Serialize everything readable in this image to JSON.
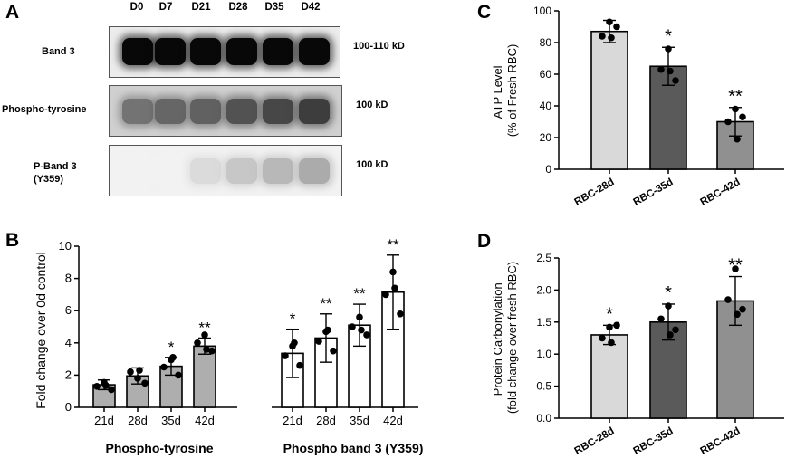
{
  "panels": {
    "a": "A",
    "b": "B",
    "c": "C",
    "d": "D"
  },
  "blot": {
    "lanes": [
      "D0",
      "D7",
      "D21",
      "D28",
      "D35",
      "D42"
    ],
    "rows": [
      {
        "label_lines": [
          "Band 3"
        ],
        "mw": "100-110 kD",
        "intensity": [
          0.97,
          0.97,
          0.97,
          0.97,
          0.97,
          0.97
        ]
      },
      {
        "label_lines": [
          "Phospho-tyrosine"
        ],
        "mw": "100 kD",
        "intensity": [
          0.55,
          0.6,
          0.62,
          0.68,
          0.72,
          0.76
        ]
      },
      {
        "label_lines": [
          "P-Band 3",
          "(Y359)"
        ],
        "mw": "100 kD",
        "intensity": [
          0.05,
          0.05,
          0.14,
          0.22,
          0.28,
          0.33
        ]
      }
    ]
  },
  "chart_data": [
    {
      "panel": "B",
      "type": "bar",
      "ylabel": "Fold change over 0d control",
      "ylim": [
        0,
        10
      ],
      "yticks": [
        0,
        2,
        4,
        6,
        8,
        10
      ],
      "groups": [
        {
          "name": "Phospho-tyrosine",
          "categories": [
            "21d",
            "28d",
            "35d",
            "42d"
          ],
          "values": [
            1.4,
            1.95,
            2.55,
            3.8
          ],
          "errors": [
            0.3,
            0.5,
            0.55,
            0.5
          ],
          "significance": [
            "",
            "",
            "*",
            "**"
          ],
          "fills": [
            "#aeaeae",
            "#aeaeae",
            "#aeaeae",
            "#aeaeae"
          ],
          "points": [
            [
              1.55,
              1.3,
              1.1,
              1.35
            ],
            [
              1.8,
              2.2,
              1.5,
              2.3
            ],
            [
              2.95,
              2.5,
              2.0,
              3.1
            ],
            [
              4.5,
              4.0,
              3.5,
              3.6
            ]
          ]
        },
        {
          "name": "Phospho band 3 (Y359)",
          "categories": [
            "21d",
            "28d",
            "35d",
            "42d"
          ],
          "values": [
            3.35,
            4.3,
            5.1,
            7.15
          ],
          "errors": [
            1.5,
            1.5,
            1.3,
            2.3
          ],
          "significance": [
            "*",
            "**",
            "**",
            "**"
          ],
          "fills": [
            "#ffffff",
            "#ffffff",
            "#ffffff",
            "#ffffff"
          ],
          "points": [
            [
              3.8,
              3.2,
              2.6,
              4.0
            ],
            [
              4.7,
              4.1,
              3.5,
              4.8
            ],
            [
              5.6,
              5.0,
              4.5,
              4.8
            ],
            [
              8.4,
              7.0,
              5.8,
              7.4
            ]
          ]
        }
      ],
      "series_colors": {
        "tyrosine": "#aeaeae",
        "y359": "#ffffff"
      }
    },
    {
      "panel": "C",
      "type": "bar",
      "ylabel_lines": [
        "ATP Level",
        "(% of Fresh RBC)"
      ],
      "ylim": [
        0,
        100
      ],
      "yticks": [
        0,
        20,
        40,
        60,
        80,
        100
      ],
      "categories": [
        "RBC-28d",
        "RBC-35d",
        "RBC-42d"
      ],
      "values": [
        87,
        65,
        30
      ],
      "errors": [
        7,
        12,
        9
      ],
      "significance": [
        "",
        "*",
        "**"
      ],
      "fills": [
        "#d9d9d9",
        "#5a5a5a",
        "#909090"
      ],
      "points": [
        [
          93,
          84,
          90,
          83
        ],
        [
          76,
          63,
          56,
          62
        ],
        [
          38,
          30,
          33,
          19
        ]
      ]
    },
    {
      "panel": "D",
      "type": "bar",
      "ylabel_lines": [
        "Protein Carbonylation",
        "(fold change over fresh RBC)"
      ],
      "ylim": [
        0,
        2.5
      ],
      "yticks": [
        0.0,
        0.5,
        1.0,
        1.5,
        2.0,
        2.5
      ],
      "categories": [
        "RBC-28d",
        "RBC-35d",
        "RBC-42d"
      ],
      "values": [
        1.3,
        1.5,
        1.83
      ],
      "errors": [
        0.15,
        0.28,
        0.38
      ],
      "significance": [
        "*",
        "*",
        "**"
      ],
      "fills": [
        "#d9d9d9",
        "#5a5a5a",
        "#909090"
      ],
      "points": [
        [
          1.42,
          1.25,
          1.45,
          1.18
        ],
        [
          1.75,
          1.55,
          1.38,
          1.3
        ],
        [
          2.33,
          1.85,
          1.7,
          1.62
        ]
      ]
    }
  ]
}
